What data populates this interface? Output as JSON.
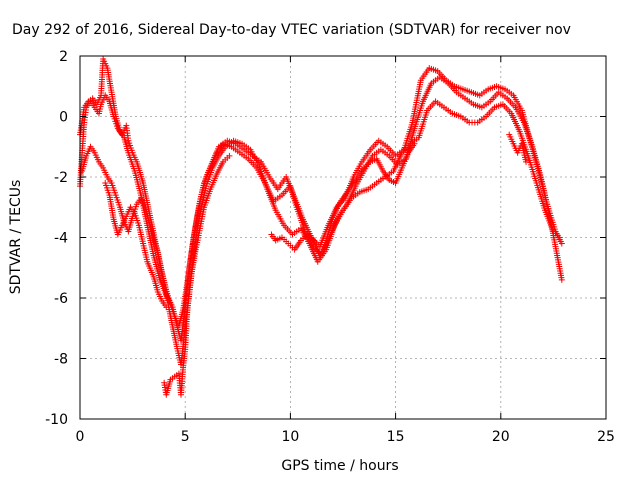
{
  "chart_data": {
    "type": "scatter",
    "title": "Day 292 of 2016, Sidereal Day-to-day VTEC variation (SDTVAR) for receiver nov",
    "xlabel": "GPS time / hours",
    "ylabel": "SDTVAR / TECUs",
    "xlim": [
      0,
      25
    ],
    "ylim": [
      -10,
      2
    ],
    "xticks": [
      "0",
      "5",
      "10",
      "15",
      "20",
      "25"
    ],
    "yticks": [
      "-10",
      "-8",
      "-6",
      "-4",
      "-2",
      "0",
      "2"
    ],
    "xtick_values": [
      0,
      5,
      10,
      15,
      20,
      25
    ],
    "ytick_values": [
      -10,
      -8,
      -6,
      -4,
      -2,
      0,
      2
    ],
    "grid": true,
    "marker": "+",
    "color": "#ff0000",
    "series": [
      {
        "points": [
          [
            0.0,
            -2.3
          ],
          [
            0.1,
            -1.2
          ],
          [
            0.2,
            -0.2
          ],
          [
            0.3,
            0.3
          ],
          [
            0.5,
            0.5
          ],
          [
            0.7,
            0.3
          ],
          [
            0.9,
            0.1
          ],
          [
            1.0,
            0.4
          ],
          [
            1.2,
            0.7
          ],
          [
            1.4,
            0.5
          ],
          [
            1.6,
            0.0
          ],
          [
            1.8,
            -0.4
          ],
          [
            2.0,
            -0.6
          ],
          [
            2.2,
            -0.3
          ],
          [
            2.3,
            -0.8
          ],
          [
            2.5,
            -1.2
          ],
          [
            2.7,
            -1.5
          ],
          [
            3.0,
            -2.2
          ],
          [
            3.3,
            -3.2
          ],
          [
            3.6,
            -4.2
          ],
          [
            3.9,
            -5.2
          ],
          [
            4.2,
            -6.0
          ],
          [
            4.5,
            -6.6
          ],
          [
            4.7,
            -6.9
          ],
          [
            4.9,
            -6.4
          ],
          [
            5.1,
            -5.5
          ],
          [
            5.3,
            -4.5
          ],
          [
            5.5,
            -3.6
          ],
          [
            5.7,
            -2.8
          ],
          [
            5.9,
            -2.2
          ],
          [
            6.2,
            -1.7
          ],
          [
            6.5,
            -1.2
          ],
          [
            6.8,
            -0.9
          ],
          [
            7.2,
            -1.0
          ],
          [
            7.6,
            -1.2
          ],
          [
            8.0,
            -1.4
          ],
          [
            8.4,
            -1.7
          ],
          [
            8.8,
            -2.2
          ],
          [
            9.2,
            -2.8
          ],
          [
            9.6,
            -2.6
          ],
          [
            10.0,
            -2.3
          ],
          [
            10.3,
            -3.0
          ],
          [
            10.7,
            -3.8
          ],
          [
            11.1,
            -4.3
          ],
          [
            11.5,
            -4.6
          ],
          [
            11.9,
            -3.9
          ],
          [
            12.3,
            -3.3
          ],
          [
            12.7,
            -2.9
          ],
          [
            13.1,
            -2.3
          ],
          [
            13.5,
            -1.8
          ],
          [
            13.9,
            -1.3
          ],
          [
            14.3,
            -1.1
          ],
          [
            14.7,
            -1.3
          ],
          [
            15.1,
            -1.6
          ],
          [
            15.5,
            -1.4
          ],
          [
            15.9,
            -0.4
          ],
          [
            16.3,
            0.5
          ],
          [
            16.7,
            1.1
          ],
          [
            17.1,
            1.3
          ],
          [
            17.5,
            1.1
          ],
          [
            17.9,
            0.8
          ],
          [
            18.3,
            0.6
          ],
          [
            18.7,
            0.4
          ],
          [
            19.1,
            0.3
          ],
          [
            19.5,
            0.5
          ],
          [
            19.9,
            0.8
          ],
          [
            20.3,
            0.6
          ],
          [
            20.7,
            0.3
          ],
          [
            21.1,
            -0.2
          ],
          [
            21.5,
            -1.0
          ],
          [
            21.9,
            -2.0
          ],
          [
            22.3,
            -3.2
          ],
          [
            22.6,
            -4.3
          ],
          [
            22.9,
            -5.4
          ]
        ]
      },
      {
        "points": [
          [
            0.0,
            -0.6
          ],
          [
            0.2,
            0.3
          ],
          [
            0.4,
            0.5
          ],
          [
            0.6,
            0.6
          ],
          [
            0.8,
            0.4
          ],
          [
            1.0,
            0.7
          ],
          [
            1.1,
            1.9
          ],
          [
            1.3,
            1.6
          ],
          [
            1.5,
            0.8
          ],
          [
            1.7,
            0.0
          ],
          [
            1.9,
            -0.5
          ],
          [
            2.1,
            -0.7
          ],
          [
            2.3,
            -1.2
          ],
          [
            2.6,
            -1.8
          ],
          [
            2.9,
            -2.6
          ],
          [
            3.2,
            -3.6
          ],
          [
            3.5,
            -4.6
          ],
          [
            3.8,
            -5.4
          ],
          [
            4.1,
            -5.9
          ],
          [
            4.4,
            -6.3
          ],
          [
            4.6,
            -6.9
          ],
          [
            4.8,
            -7.4
          ],
          [
            5.0,
            -6.3
          ],
          [
            5.2,
            -5.0
          ],
          [
            5.4,
            -4.0
          ],
          [
            5.6,
            -3.2
          ],
          [
            5.8,
            -2.5
          ],
          [
            6.0,
            -2.0
          ],
          [
            6.3,
            -1.5
          ],
          [
            6.6,
            -1.0
          ],
          [
            7.0,
            -0.8
          ],
          [
            7.4,
            -0.9
          ],
          [
            7.8,
            -1.1
          ],
          [
            8.2,
            -1.3
          ],
          [
            8.6,
            -1.5
          ],
          [
            9.0,
            -2.0
          ],
          [
            9.4,
            -2.4
          ],
          [
            9.8,
            -2.0
          ],
          [
            10.2,
            -2.7
          ],
          [
            10.6,
            -3.4
          ],
          [
            11.0,
            -4.0
          ],
          [
            11.4,
            -4.3
          ],
          [
            11.8,
            -3.6
          ],
          [
            12.2,
            -3.0
          ],
          [
            12.6,
            -2.7
          ],
          [
            13.0,
            -2.0
          ],
          [
            13.4,
            -1.5
          ],
          [
            13.8,
            -1.1
          ],
          [
            14.2,
            -0.8
          ],
          [
            14.6,
            -1.0
          ],
          [
            15.0,
            -1.3
          ],
          [
            15.4,
            -1.1
          ],
          [
            15.8,
            -0.2
          ],
          [
            16.2,
            1.2
          ],
          [
            16.6,
            1.6
          ],
          [
            17.0,
            1.5
          ],
          [
            17.4,
            1.2
          ],
          [
            17.8,
            1.0
          ],
          [
            18.2,
            0.9
          ],
          [
            18.6,
            0.8
          ],
          [
            19.0,
            0.7
          ],
          [
            19.4,
            0.9
          ],
          [
            19.8,
            1.0
          ],
          [
            20.2,
            0.9
          ],
          [
            20.6,
            0.7
          ],
          [
            21.0,
            0.2
          ],
          [
            21.4,
            -0.8
          ],
          [
            21.8,
            -1.8
          ],
          [
            22.2,
            -2.9
          ],
          [
            22.6,
            -3.8
          ],
          [
            22.9,
            -4.2
          ]
        ]
      },
      {
        "points": [
          [
            0.1,
            -1.8
          ],
          [
            0.3,
            -1.3
          ],
          [
            0.5,
            -1.0
          ],
          [
            0.7,
            -1.2
          ],
          [
            0.9,
            -1.5
          ],
          [
            1.1,
            -1.7
          ],
          [
            1.3,
            -2.0
          ],
          [
            1.5,
            -2.2
          ],
          [
            1.7,
            -2.6
          ],
          [
            1.9,
            -3.0
          ],
          [
            2.1,
            -3.5
          ],
          [
            2.3,
            -3.8
          ],
          [
            2.5,
            -3.3
          ],
          [
            2.7,
            -2.9
          ],
          [
            2.9,
            -2.7
          ],
          [
            3.1,
            -3.0
          ],
          [
            3.4,
            -3.8
          ],
          [
            3.7,
            -4.5
          ],
          [
            4.0,
            -5.5
          ],
          [
            4.3,
            -6.6
          ],
          [
            4.6,
            -7.6
          ],
          [
            4.8,
            -8.2
          ],
          [
            5.0,
            -7.0
          ],
          [
            5.2,
            -5.8
          ],
          [
            5.4,
            -4.6
          ],
          [
            5.6,
            -3.6
          ],
          [
            5.8,
            -2.9
          ],
          [
            6.0,
            -2.3
          ],
          [
            6.3,
            -1.7
          ],
          [
            6.6,
            -1.3
          ],
          [
            6.9,
            -1.0
          ],
          [
            7.3,
            -0.8
          ],
          [
            7.7,
            -0.9
          ],
          [
            8.1,
            -1.1
          ],
          [
            8.5,
            -1.6
          ],
          [
            8.9,
            -2.4
          ],
          [
            9.3,
            -3.1
          ],
          [
            9.7,
            -3.6
          ],
          [
            10.1,
            -3.9
          ],
          [
            10.5,
            -3.7
          ],
          [
            10.9,
            -4.2
          ],
          [
            11.3,
            -4.8
          ],
          [
            11.7,
            -4.4
          ],
          [
            12.1,
            -3.6
          ],
          [
            12.5,
            -3.1
          ],
          [
            12.9,
            -2.7
          ],
          [
            13.3,
            -2.5
          ],
          [
            13.7,
            -2.4
          ],
          [
            14.1,
            -2.2
          ],
          [
            14.5,
            -2.0
          ],
          [
            14.9,
            -1.8
          ],
          [
            15.3,
            -1.2
          ],
          [
            15.7,
            -0.9
          ],
          [
            16.1,
            -0.7
          ],
          [
            16.5,
            0.2
          ],
          [
            16.9,
            0.5
          ],
          [
            17.3,
            0.3
          ],
          [
            17.7,
            0.1
          ],
          [
            18.1,
            0.0
          ],
          [
            18.5,
            -0.2
          ],
          [
            18.9,
            -0.2
          ],
          [
            19.3,
            0.0
          ],
          [
            19.7,
            0.3
          ],
          [
            20.1,
            0.4
          ],
          [
            20.5,
            0.1
          ],
          [
            20.9,
            -0.5
          ],
          [
            21.3,
            -1.3
          ],
          [
            21.7,
            -2.2
          ],
          [
            22.1,
            -3.1
          ],
          [
            22.5,
            -3.8
          ],
          [
            22.8,
            -4.0
          ]
        ]
      },
      {
        "points": [
          [
            1.2,
            -2.2
          ],
          [
            1.4,
            -2.6
          ],
          [
            1.6,
            -3.4
          ],
          [
            1.8,
            -3.9
          ],
          [
            2.0,
            -3.6
          ],
          [
            2.2,
            -3.3
          ],
          [
            2.4,
            -3.0
          ],
          [
            2.6,
            -3.2
          ],
          [
            2.8,
            -3.6
          ],
          [
            3.0,
            -4.2
          ],
          [
            3.2,
            -4.8
          ],
          [
            3.5,
            -5.3
          ],
          [
            3.7,
            -5.8
          ],
          [
            3.9,
            -6.1
          ],
          [
            4.1,
            -6.3
          ],
          [
            4.0,
            -8.8
          ],
          [
            4.1,
            -9.2
          ],
          [
            4.3,
            -8.7
          ],
          [
            4.5,
            -8.6
          ],
          [
            4.7,
            -8.5
          ],
          [
            4.8,
            -9.2
          ],
          [
            4.9,
            -8.3
          ],
          [
            5.0,
            -7.7
          ],
          [
            5.1,
            -6.4
          ],
          [
            5.3,
            -5.2
          ],
          [
            5.5,
            -4.4
          ],
          [
            5.7,
            -3.7
          ],
          [
            5.9,
            -3.0
          ],
          [
            6.2,
            -2.4
          ],
          [
            6.5,
            -1.9
          ],
          [
            6.8,
            -1.5
          ],
          [
            7.1,
            -1.3
          ],
          [
            9.1,
            -3.9
          ],
          [
            9.3,
            -4.1
          ],
          [
            9.6,
            -4.0
          ],
          [
            9.9,
            -4.2
          ],
          [
            10.2,
            -4.4
          ],
          [
            10.5,
            -4.1
          ],
          [
            10.8,
            -3.9
          ],
          [
            11.1,
            -4.1
          ],
          [
            11.4,
            -4.6
          ],
          [
            11.7,
            -4.1
          ],
          [
            12.0,
            -3.4
          ],
          [
            12.3,
            -2.9
          ],
          [
            12.6,
            -2.6
          ],
          [
            12.9,
            -2.3
          ],
          [
            13.2,
            -2.0
          ],
          [
            13.5,
            -1.7
          ],
          [
            13.8,
            -1.5
          ],
          [
            14.1,
            -1.4
          ],
          [
            14.4,
            -1.8
          ],
          [
            14.7,
            -2.1
          ],
          [
            15.0,
            -2.2
          ],
          [
            15.3,
            -1.7
          ],
          [
            15.6,
            -1.2
          ],
          [
            15.9,
            -0.9
          ],
          [
            20.4,
            -0.6
          ],
          [
            20.6,
            -0.9
          ],
          [
            20.8,
            -1.2
          ],
          [
            21.0,
            -0.9
          ],
          [
            21.2,
            -1.5
          ]
        ]
      }
    ]
  }
}
